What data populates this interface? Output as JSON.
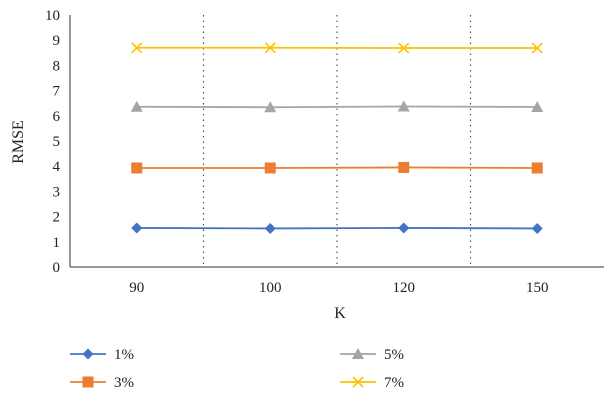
{
  "chart_data": {
    "type": "line",
    "title": "",
    "xlabel": "K",
    "ylabel": "RMSE",
    "categories": [
      "90",
      "100",
      "120",
      "150"
    ],
    "yticks": [
      "0",
      "1",
      "2",
      "3",
      "4",
      "5",
      "6",
      "7",
      "8",
      "9",
      "10"
    ],
    "ylim": [
      0,
      10
    ],
    "grid": "vertical dotted lines between categories",
    "legend_position": "bottom",
    "series": [
      {
        "name": "1%",
        "values": [
          1.55,
          1.53,
          1.55,
          1.53
        ],
        "color": "#4472C4",
        "marker": "diamond"
      },
      {
        "name": "3%",
        "values": [
          3.93,
          3.93,
          3.95,
          3.93
        ],
        "color": "#ED7D31",
        "marker": "square"
      },
      {
        "name": "5%",
        "values": [
          6.36,
          6.34,
          6.37,
          6.35
        ],
        "color": "#A5A5A5",
        "marker": "triangle"
      },
      {
        "name": "7%",
        "values": [
          8.7,
          8.7,
          8.69,
          8.69
        ],
        "color": "#FFC000",
        "marker": "x"
      }
    ]
  }
}
